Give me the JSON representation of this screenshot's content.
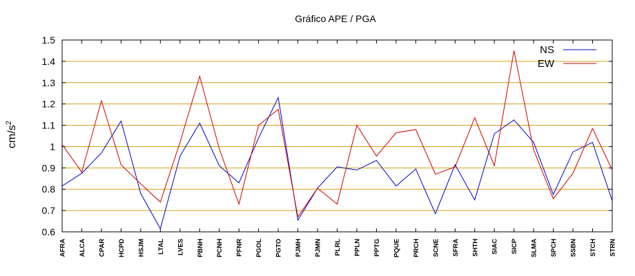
{
  "chart_data": {
    "type": "line",
    "title": "Gráfico  APE / PGA",
    "ylabel": "cm/s",
    "ylabel_sup": "2",
    "xlabel": "",
    "ylim": [
      0.6,
      1.5
    ],
    "yticks": [
      0.6,
      0.7,
      0.8,
      0.9,
      1,
      1.1,
      1.2,
      1.3,
      1.4,
      1.5
    ],
    "ytick_labels": [
      "0.6",
      "0.7",
      "0.8",
      "0.9",
      "1",
      "1.1",
      "1.2",
      "1.3",
      "1.4",
      "1.5"
    ],
    "grid": true,
    "grid_color": "#d4a017",
    "legend_position": "top-right",
    "categories": [
      "AFRA",
      "ALCA",
      "CPAR",
      "HCPD",
      "HSJM",
      "LTAL",
      "LVES",
      "PBNH",
      "PCNH",
      "PFNR",
      "PGOL",
      "PGTO",
      "PJMH",
      "PJMN",
      "PLRL",
      "PPLN",
      "PPTG",
      "PQUE",
      "PRCH",
      "SCNE",
      "SFRA",
      "SHTH",
      "SIAC",
      "SICP",
      "SLMA",
      "SPCH",
      "SSBN",
      "STCH",
      "STRN"
    ],
    "series": [
      {
        "name": "NS",
        "color": "#0000cc",
        "values": [
          0.815,
          0.875,
          0.97,
          1.12,
          0.78,
          0.615,
          0.955,
          1.11,
          0.91,
          0.83,
          1.04,
          1.23,
          0.655,
          0.805,
          0.905,
          0.89,
          0.935,
          0.815,
          0.895,
          0.685,
          0.915,
          0.75,
          1.06,
          1.125,
          1.02,
          0.775,
          0.975,
          1.02,
          0.745
        ]
      },
      {
        "name": "EW",
        "color": "#cc0000",
        "values": [
          1.01,
          0.88,
          1.215,
          0.915,
          0.825,
          0.74,
          1.02,
          1.33,
          0.99,
          0.73,
          1.1,
          1.175,
          0.67,
          0.805,
          0.73,
          1.1,
          0.955,
          1.065,
          1.08,
          0.87,
          0.905,
          1.135,
          0.91,
          1.45,
          0.985,
          0.755,
          0.875,
          1.085,
          0.89
        ]
      }
    ]
  }
}
